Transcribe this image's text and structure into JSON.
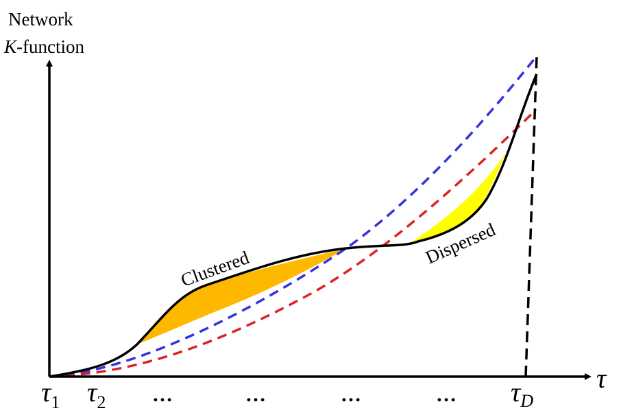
{
  "diagram": {
    "y_axis_label_line1": "Network",
    "y_axis_label_line2_italic": "K",
    "y_axis_label_line2_rest": "-function",
    "x_axis_label": "τ",
    "ticks": [
      {
        "symbol": "τ",
        "subscript": "1"
      },
      {
        "symbol": "τ",
        "subscript": "2"
      },
      {
        "symbol": "…"
      },
      {
        "symbol": "…"
      },
      {
        "symbol": "…"
      },
      {
        "symbol": "…"
      },
      {
        "symbol": "τ",
        "subscript": "D"
      }
    ],
    "annotations": {
      "clustered": "Clustered",
      "dispersed": "Dispersed"
    },
    "colors": {
      "observed_curve": "#000000",
      "upper_envelope": "#3333dd",
      "lower_envelope": "#dd2222",
      "clustered_fill": "#ffb800",
      "dispersed_fill": "#ffff00"
    }
  }
}
